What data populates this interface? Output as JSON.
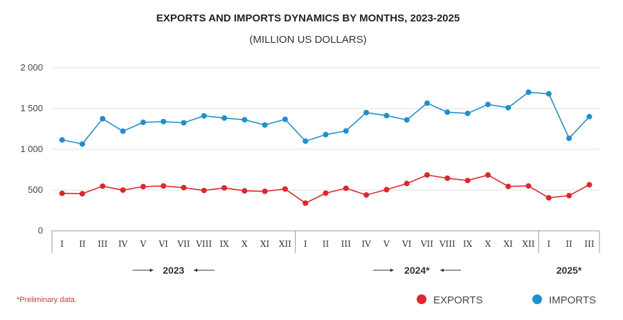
{
  "chart_data": {
    "type": "line",
    "title": "EXPORTS AND IMPORTS DYNAMICS BY MONTHS, 2023-2025",
    "subtitle": "(MILLION US DOLLARS)",
    "ylim": [
      0,
      2000
    ],
    "yticks": [
      0,
      500,
      1000,
      1500,
      2000
    ],
    "ytick_labels": [
      "0",
      "500",
      "1 000",
      "1 500",
      "2 000"
    ],
    "grid": true,
    "legend_position": "bottom-right",
    "categories": [
      "I",
      "II",
      "III",
      "IV",
      "V",
      "VI",
      "VII",
      "VIII",
      "IX",
      "X",
      "XI",
      "XII",
      "I",
      "II",
      "III",
      "IV",
      "V",
      "VI",
      "VII",
      "VIII",
      "IX",
      "X",
      "XI",
      "XII",
      "I",
      "II",
      "III"
    ],
    "groups": [
      {
        "label": "2023",
        "start": 0,
        "end": 11
      },
      {
        "label": "2024*",
        "start": 12,
        "end": 23
      },
      {
        "label": "2025*",
        "start": 24,
        "end": 26
      }
    ],
    "series": [
      {
        "name": "EXPORTS",
        "color": "#e3242b",
        "values": [
          460,
          455,
          548,
          500,
          542,
          550,
          530,
          495,
          527,
          490,
          485,
          513,
          340,
          462,
          522,
          440,
          505,
          580,
          685,
          645,
          617,
          685,
          545,
          550,
          405,
          432,
          565
        ]
      },
      {
        "name": "IMPORTS",
        "color": "#1e90d0",
        "values": [
          1115,
          1065,
          1375,
          1222,
          1330,
          1340,
          1325,
          1410,
          1383,
          1362,
          1298,
          1368,
          1100,
          1180,
          1225,
          1450,
          1413,
          1360,
          1566,
          1455,
          1440,
          1550,
          1510,
          1700,
          1680,
          1135,
          1400
        ]
      }
    ]
  },
  "footnote": "*Preliminary data.",
  "colors": {
    "axis": "#999999",
    "grid": "#e2e2e2"
  }
}
